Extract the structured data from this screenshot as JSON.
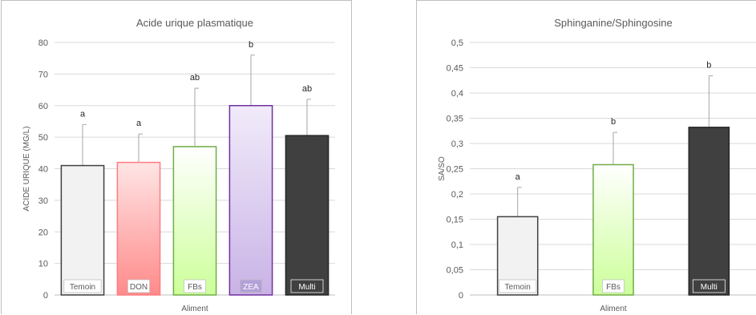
{
  "colors": {
    "grid": "#d9d9d9",
    "axis": "#bfbfbf",
    "error_bar": "#a6a6a6",
    "temoin": "#f2f2f2",
    "don_top": "#ffe5e5",
    "don_bottom": "#ff8a8a",
    "fbs_top": "#ffffff",
    "fbs_bottom": "#ccff99",
    "zea_top": "#f1ebfa",
    "zea_bottom": "#c9b3e6",
    "multi": "#404040"
  },
  "chart_data": [
    {
      "type": "bar",
      "title": "Acide urique plasmatique",
      "xlabel": "Aliment",
      "ylabel": "ACIDE URIQUE (MG/L)",
      "ylim": [
        0,
        80
      ],
      "yticks": [
        "0",
        "10",
        "20",
        "30",
        "40",
        "50",
        "60",
        "70",
        "80"
      ],
      "grid": true,
      "categories": [
        "Temoin",
        "DON",
        "FBs",
        "ZEA",
        "Multi"
      ],
      "values": [
        41,
        42,
        47,
        60,
        50.5
      ],
      "error_upper": [
        54,
        51,
        65.5,
        76,
        62
      ],
      "significance": [
        "a",
        "a",
        "ab",
        "b",
        "ab"
      ]
    },
    {
      "type": "bar",
      "title": "Sphinganine/Sphingosine",
      "xlabel": "Aliment",
      "ylabel": "SA/SO",
      "ylim": [
        0,
        0.5
      ],
      "yticks": [
        "0",
        "0,05",
        "0,1",
        "0,15",
        "0,2",
        "0,25",
        "0,3",
        "0,35",
        "0,4",
        "0,45",
        "0,5"
      ],
      "grid": true,
      "categories": [
        "Temoin",
        "FBs",
        "Multi"
      ],
      "values": [
        0.155,
        0.258,
        0.332
      ],
      "error_upper": [
        0.213,
        0.322,
        0.434
      ],
      "significance": [
        "a",
        "b",
        "b"
      ]
    }
  ]
}
